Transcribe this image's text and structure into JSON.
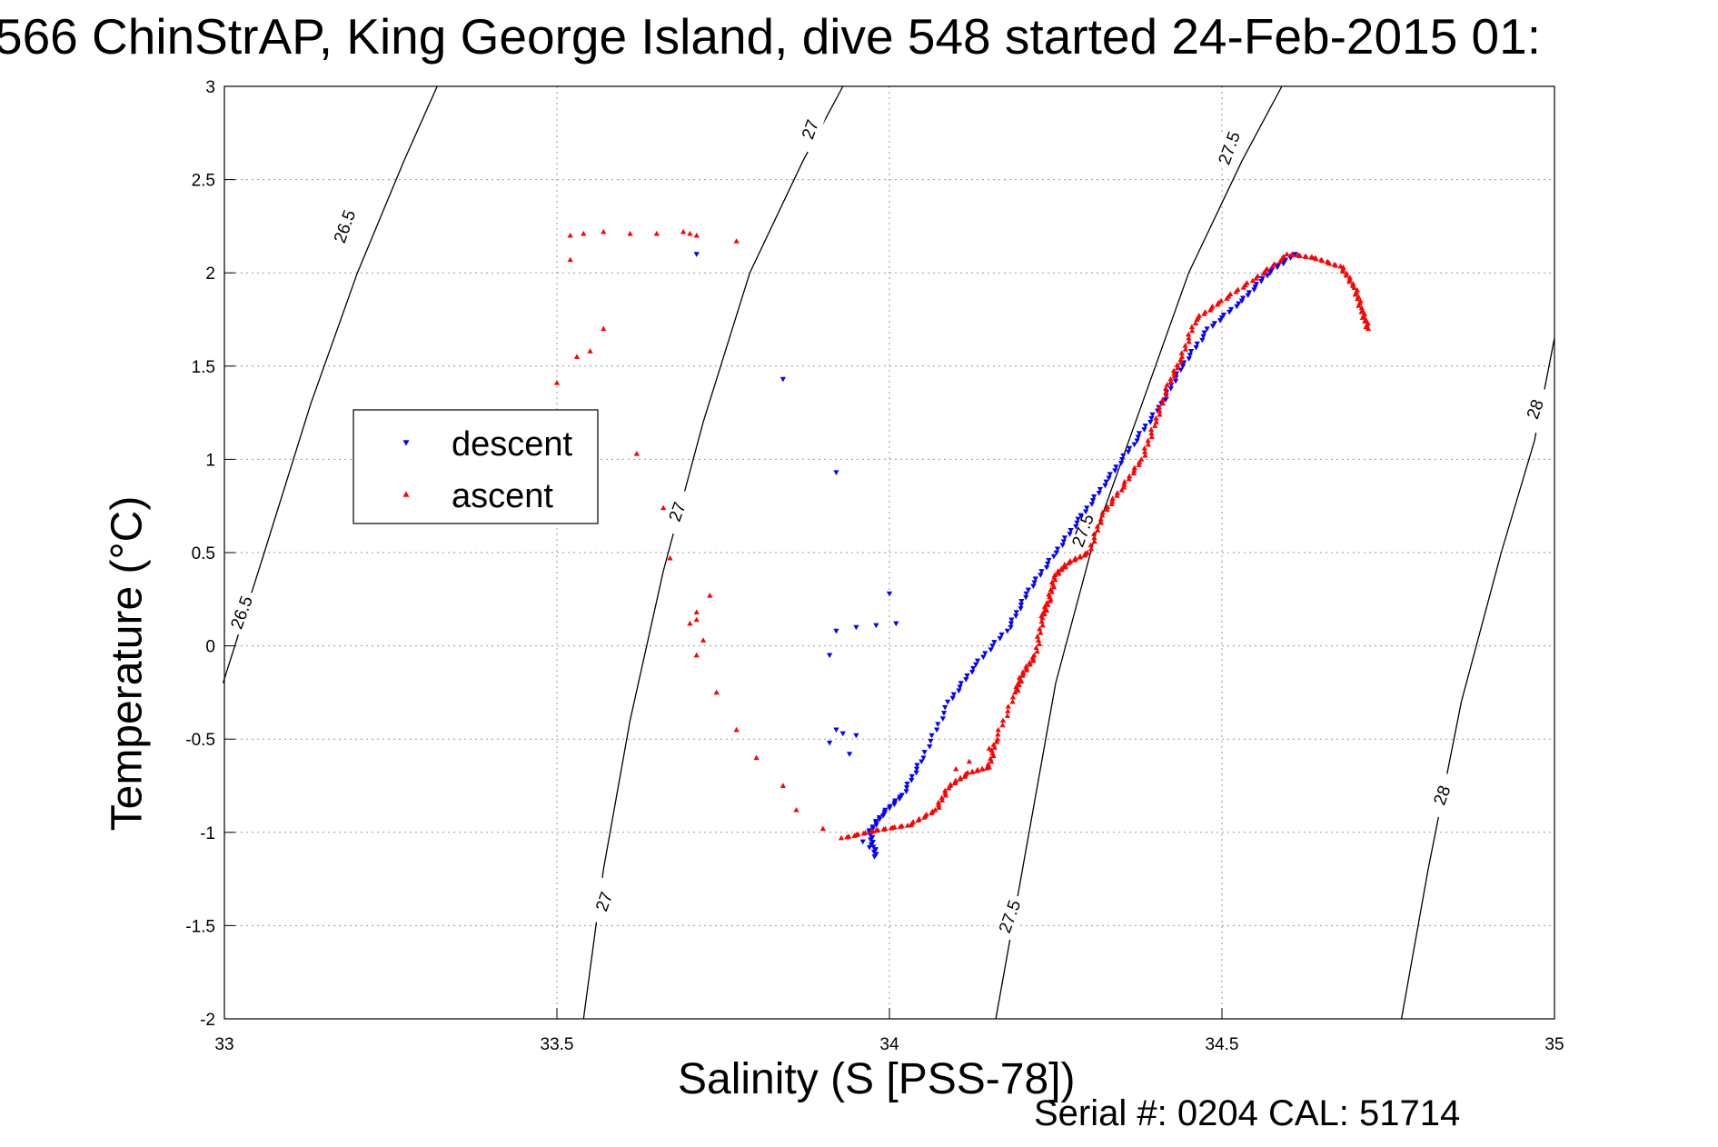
{
  "chart_data": {
    "type": "scatter",
    "title": "566 ChinStrAP, King George Island, dive 548 started 24-Feb-2015 01:",
    "xlabel": "Salinity (S [PSS-78])",
    "ylabel": "Temperature (°C)",
    "footer": "Serial #: 0204  CAL: 51714",
    "xlim": [
      33,
      35
    ],
    "ylim": [
      -2,
      3
    ],
    "xticks": [
      "33",
      "33.5",
      "34",
      "34.5",
      "35"
    ],
    "yticks": [
      "3",
      "2.5",
      "2",
      "1.5",
      "1",
      "0.5",
      "0",
      "-0.5",
      "-1",
      "-1.5",
      "-2"
    ],
    "grid": true,
    "legend": {
      "location": "left",
      "entries": [
        "descent",
        "ascent"
      ]
    },
    "colors": {
      "descent": "#0000ff",
      "ascent": "#ff0000",
      "isopycnal": "#000000"
    },
    "isopycnals": [
      {
        "label": "26.5",
        "points": [
          [
            32.998,
            -0.2
          ],
          [
            33.06,
            0.5
          ],
          [
            33.13,
            1.3
          ],
          [
            33.2,
            2.0
          ],
          [
            33.27,
            2.6
          ],
          [
            33.32,
            3.0
          ]
        ]
      },
      {
        "label": "27",
        "points": [
          [
            33.54,
            -2.0
          ],
          [
            33.57,
            -1.2
          ],
          [
            33.61,
            -0.4
          ],
          [
            33.66,
            0.4
          ],
          [
            33.72,
            1.2
          ],
          [
            33.79,
            2.0
          ],
          [
            33.87,
            2.6
          ],
          [
            33.93,
            3.0
          ]
        ]
      },
      {
        "label": "27.5",
        "points": [
          [
            34.16,
            -2.0
          ],
          [
            34.2,
            -1.2
          ],
          [
            34.25,
            -0.2
          ],
          [
            34.31,
            0.6
          ],
          [
            34.38,
            1.3
          ],
          [
            34.45,
            2.0
          ],
          [
            34.53,
            2.6
          ],
          [
            34.59,
            3.0
          ]
        ]
      },
      {
        "label": "28",
        "points": [
          [
            34.77,
            -2.0
          ],
          [
            34.81,
            -1.2
          ],
          [
            34.86,
            -0.3
          ],
          [
            34.92,
            0.5
          ],
          [
            34.97,
            1.1
          ],
          [
            35.0,
            1.65
          ]
        ]
      }
    ],
    "contour_labels": [
      {
        "text": "26.5",
        "x": 33.18,
        "y": 2.25
      },
      {
        "text": "26.5",
        "x": 33.025,
        "y": 0.18
      },
      {
        "text": "27",
        "x": 33.88,
        "y": 2.77
      },
      {
        "text": "27",
        "x": 33.68,
        "y": 0.72
      },
      {
        "text": "27",
        "x": 33.57,
        "y": -1.37
      },
      {
        "text": "27.5",
        "x": 34.51,
        "y": 2.67
      },
      {
        "text": "27.5",
        "x": 34.29,
        "y": 0.62
      },
      {
        "text": "27.5",
        "x": 34.18,
        "y": -1.45
      },
      {
        "text": "28",
        "x": 34.97,
        "y": 1.27
      },
      {
        "text": "28",
        "x": 34.83,
        "y": -0.8
      }
    ],
    "series": [
      {
        "name": "descent",
        "marker": "triangle-down",
        "path": [
          [
            33.98,
            -1.13
          ],
          [
            33.97,
            -1.0
          ],
          [
            33.99,
            -0.9
          ],
          [
            34.02,
            -0.8
          ],
          [
            34.05,
            -0.6
          ],
          [
            34.09,
            -0.3
          ],
          [
            34.13,
            -0.1
          ],
          [
            34.18,
            0.1
          ],
          [
            34.21,
            0.3
          ],
          [
            34.25,
            0.5
          ],
          [
            34.29,
            0.7
          ],
          [
            34.33,
            0.9
          ],
          [
            34.37,
            1.1
          ],
          [
            34.41,
            1.3
          ],
          [
            34.44,
            1.5
          ],
          [
            34.48,
            1.7
          ],
          [
            34.53,
            1.85
          ],
          [
            34.57,
            2.0
          ],
          [
            34.61,
            2.1
          ]
        ],
        "scatter": [
          [
            33.71,
            2.1
          ],
          [
            33.84,
            1.43
          ],
          [
            33.92,
            0.93
          ],
          [
            34.0,
            0.28
          ],
          [
            34.01,
            0.12
          ],
          [
            33.98,
            0.11
          ],
          [
            33.95,
            0.1
          ],
          [
            33.92,
            0.08
          ],
          [
            33.91,
            -0.05
          ],
          [
            33.92,
            -0.45
          ],
          [
            33.93,
            -0.47
          ],
          [
            33.95,
            -0.48
          ],
          [
            33.91,
            -0.52
          ],
          [
            33.94,
            -0.58
          ],
          [
            33.97,
            -1.08
          ],
          [
            33.96,
            -1.05
          ]
        ]
      },
      {
        "name": "ascent",
        "marker": "triangle-up",
        "path": [
          [
            33.93,
            -1.03
          ],
          [
            33.98,
            -0.99
          ],
          [
            34.03,
            -0.96
          ],
          [
            34.07,
            -0.88
          ],
          [
            34.09,
            -0.75
          ],
          [
            34.12,
            -0.68
          ],
          [
            34.15,
            -0.65
          ],
          [
            34.16,
            -0.5
          ],
          [
            34.19,
            -0.25
          ],
          [
            34.2,
            -0.15
          ],
          [
            34.22,
            -0.05
          ],
          [
            34.23,
            0.15
          ],
          [
            34.24,
            0.25
          ],
          [
            34.25,
            0.38
          ],
          [
            34.27,
            0.45
          ],
          [
            34.3,
            0.5
          ],
          [
            34.32,
            0.7
          ],
          [
            34.35,
            0.85
          ],
          [
            34.38,
            1.0
          ],
          [
            34.4,
            1.2
          ],
          [
            34.42,
            1.4
          ],
          [
            34.44,
            1.55
          ],
          [
            34.46,
            1.75
          ],
          [
            34.5,
            1.85
          ],
          [
            34.55,
            1.97
          ],
          [
            34.6,
            2.1
          ],
          [
            34.64,
            2.08
          ],
          [
            34.68,
            2.03
          ],
          [
            34.7,
            1.92
          ],
          [
            34.71,
            1.8
          ],
          [
            34.72,
            1.7
          ]
        ],
        "scatter": [
          [
            33.52,
            2.2
          ],
          [
            33.54,
            2.21
          ],
          [
            33.57,
            2.22
          ],
          [
            33.61,
            2.21
          ],
          [
            33.65,
            2.21
          ],
          [
            33.69,
            2.22
          ],
          [
            33.7,
            2.21
          ],
          [
            33.71,
            2.2
          ],
          [
            33.77,
            2.17
          ],
          [
            33.52,
            2.07
          ],
          [
            33.57,
            1.7
          ],
          [
            33.55,
            1.58
          ],
          [
            33.53,
            1.55
          ],
          [
            33.5,
            1.41
          ],
          [
            33.62,
            1.03
          ],
          [
            33.66,
            0.74
          ],
          [
            33.67,
            0.47
          ],
          [
            33.73,
            0.27
          ],
          [
            33.71,
            0.18
          ],
          [
            33.71,
            0.14
          ],
          [
            33.7,
            0.12
          ],
          [
            33.72,
            0.03
          ],
          [
            33.71,
            -0.05
          ],
          [
            33.74,
            -0.25
          ],
          [
            33.77,
            -0.45
          ],
          [
            33.8,
            -0.6
          ],
          [
            33.84,
            -0.75
          ],
          [
            33.86,
            -0.88
          ],
          [
            33.9,
            -0.98
          ],
          [
            34.15,
            -0.55
          ],
          [
            34.12,
            -0.62
          ],
          [
            34.1,
            -0.66
          ]
        ]
      }
    ]
  }
}
